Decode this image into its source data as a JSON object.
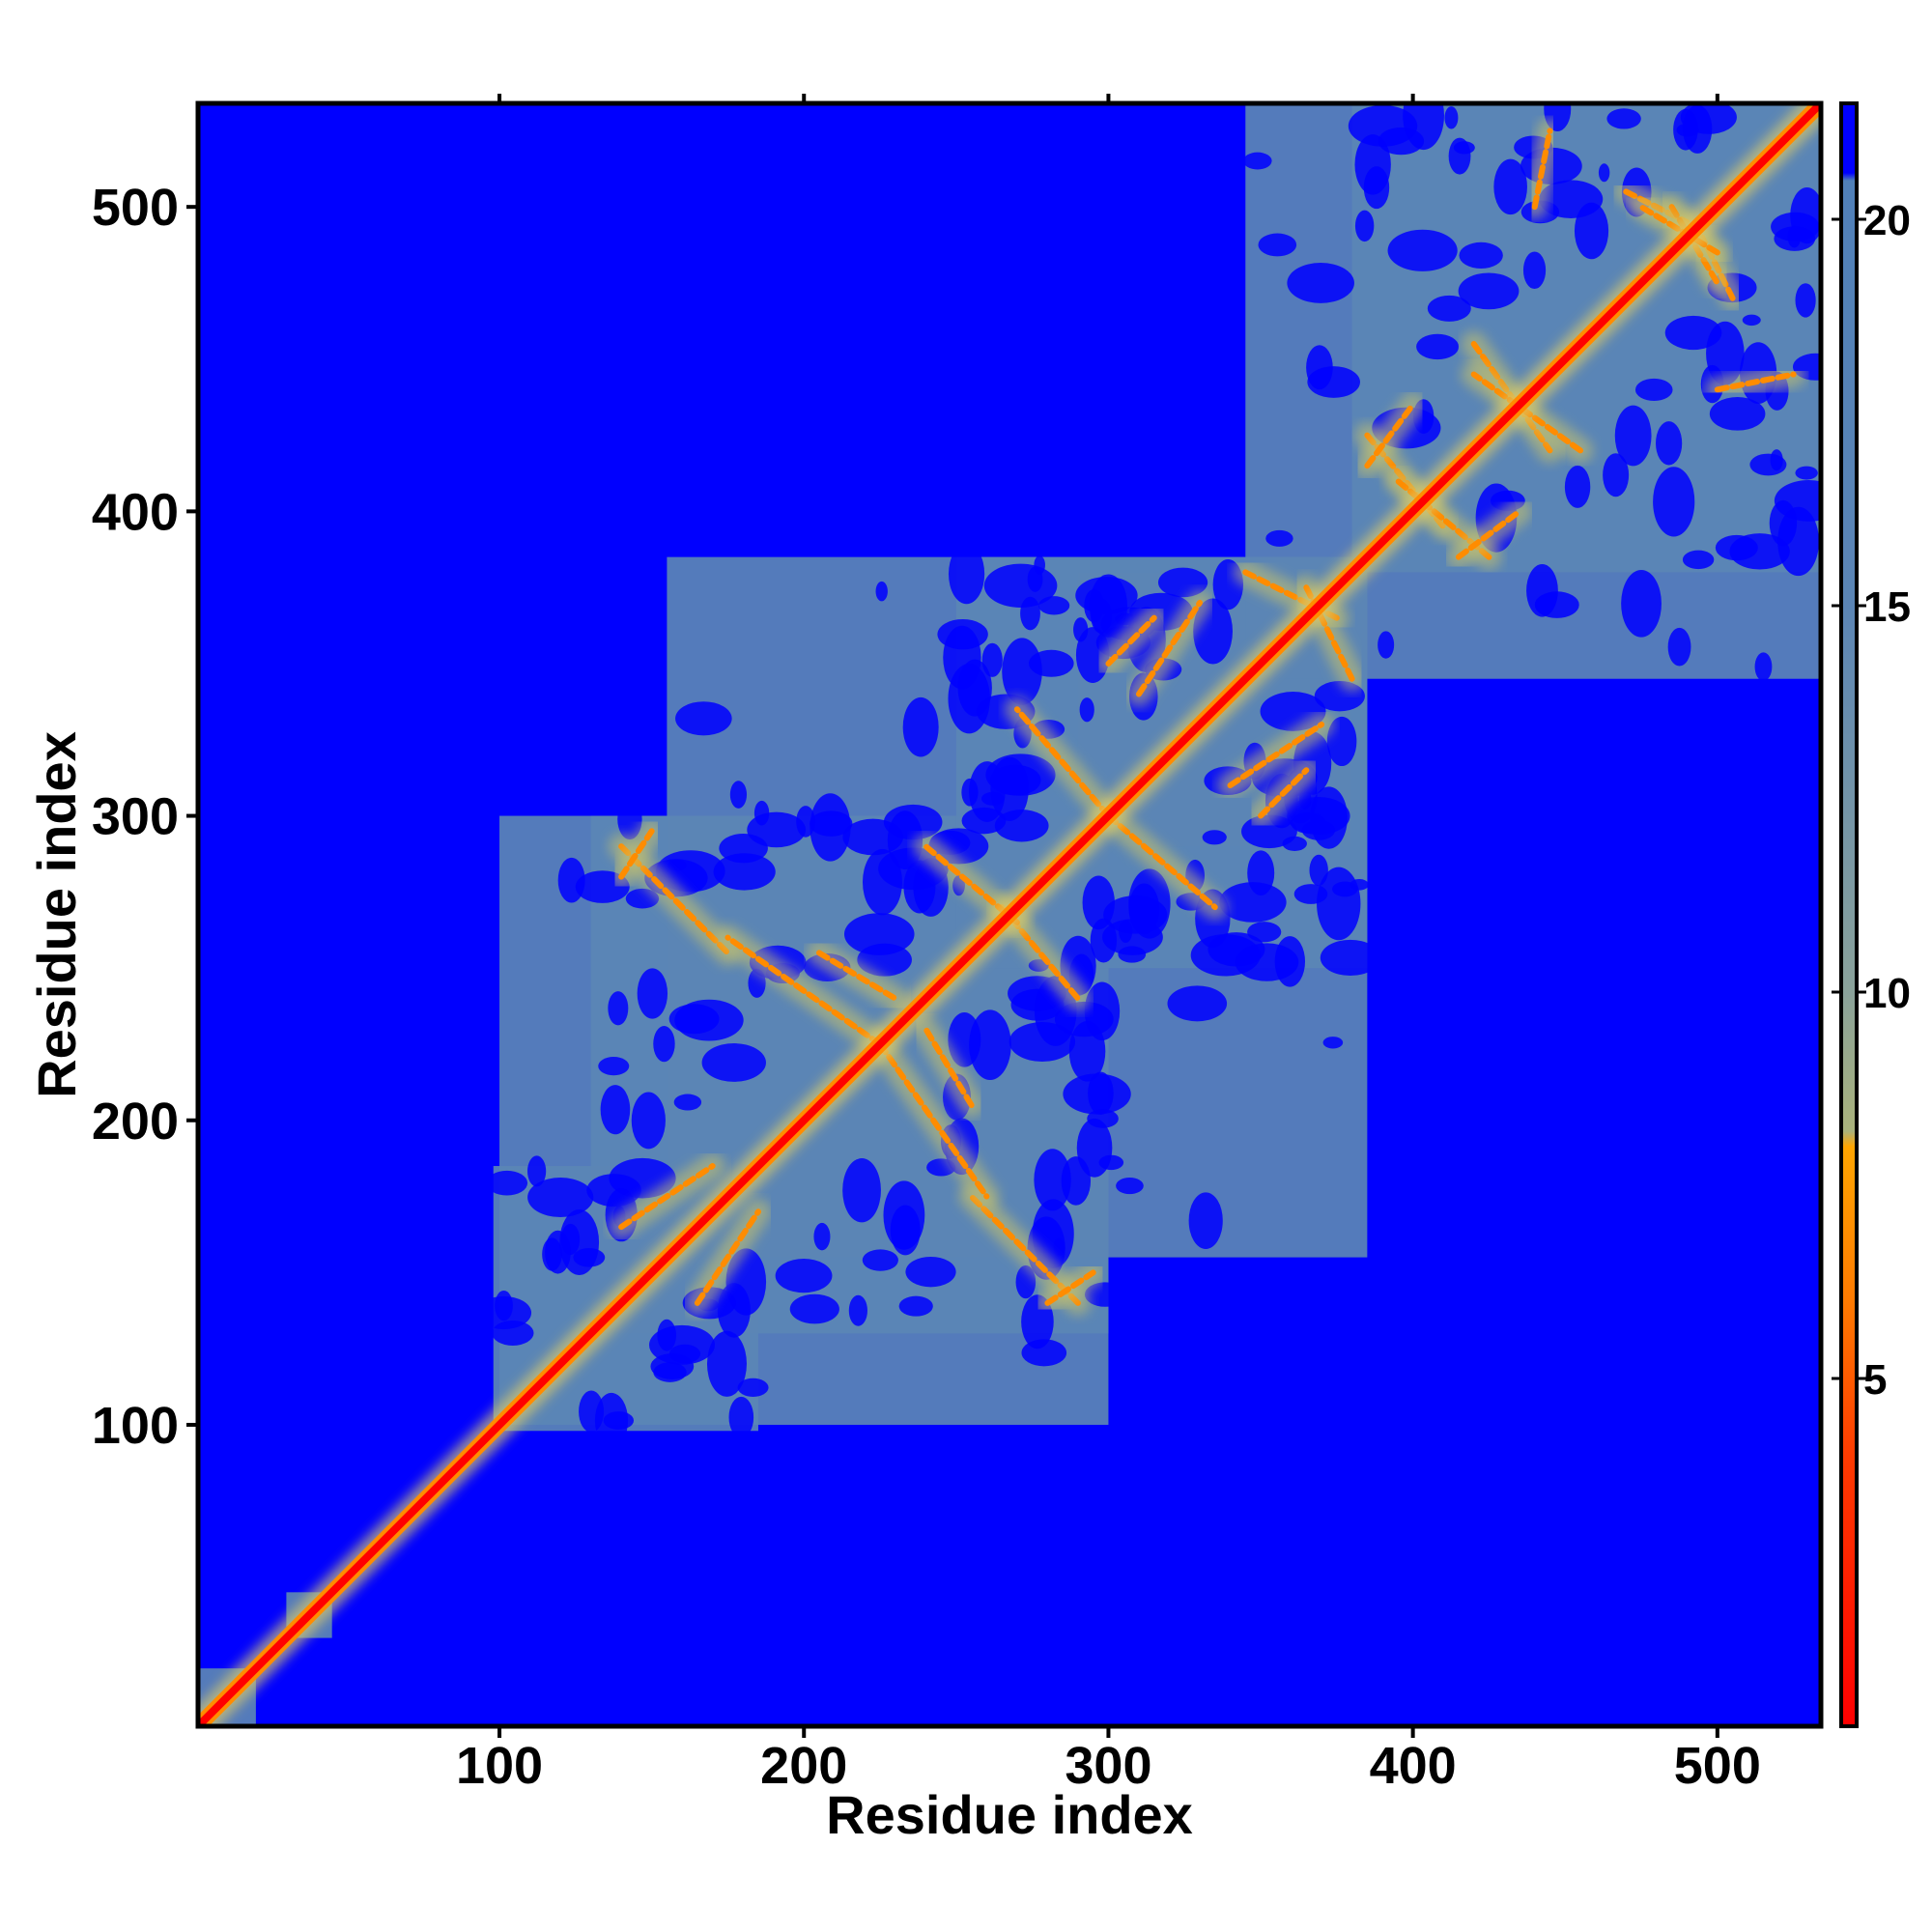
{
  "chart_data": {
    "type": "heatmap",
    "title": "",
    "xlabel": "Residue index",
    "ylabel": "Residue index",
    "xlim": [
      1,
      534
    ],
    "ylim": [
      1,
      534
    ],
    "x_ticks": [
      100,
      200,
      300,
      400,
      500
    ],
    "y_ticks": [
      100,
      200,
      300,
      400,
      500
    ],
    "x_tick_labels": [
      "100",
      "200",
      "300",
      "400",
      "500"
    ],
    "y_tick_labels": [
      "100",
      "200",
      "300",
      "400",
      "500"
    ],
    "colorbar": {
      "min": 0.5,
      "max": 21.5,
      "ticks": [
        5,
        10,
        15,
        20
      ],
      "tick_labels": [
        "5",
        "10",
        "15",
        "20"
      ],
      "stops": [
        {
          "value": 0.5,
          "color": "#ff0000"
        },
        {
          "value": 4,
          "color": "#ff3b00"
        },
        {
          "value": 6,
          "color": "#ff7a00"
        },
        {
          "value": 8,
          "color": "#ffa500"
        },
        {
          "value": 8.2,
          "color": "#a9b27b"
        },
        {
          "value": 10,
          "color": "#8aa29a"
        },
        {
          "value": 15,
          "color": "#5b85b5"
        },
        {
          "value": 20.5,
          "color": "#5080b8"
        },
        {
          "value": 20.6,
          "color": "#0000ff"
        },
        {
          "value": 21.5,
          "color": "#0000ff"
        }
      ]
    },
    "background_color": "#0000ff",
    "diagonal_color": "#ff0000",
    "domains": [
      {
        "start": 1,
        "end": 20,
        "level": 16
      },
      {
        "start": 30,
        "end": 45,
        "level": 16
      },
      {
        "start": 98,
        "end": 185,
        "level": 17
      },
      {
        "start": 100,
        "end": 300,
        "level": 16
      },
      {
        "start": 130,
        "end": 300,
        "level": 17
      },
      {
        "start": 155,
        "end": 385,
        "level": 18
      },
      {
        "start": 250,
        "end": 385,
        "level": 17
      },
      {
        "start": 290,
        "end": 380,
        "level": 16
      },
      {
        "start": 380,
        "end": 534,
        "level": 16
      },
      {
        "start": 345,
        "end": 534,
        "level": 18
      }
    ],
    "contact_arms": [
      {
        "x1": 140,
        "y1": 290,
        "x2": 175,
        "y2": 255
      },
      {
        "x1": 165,
        "y1": 140,
        "x2": 185,
        "y2": 170
      },
      {
        "x1": 205,
        "y1": 255,
        "x2": 230,
        "y2": 240
      },
      {
        "x1": 225,
        "y1": 225,
        "x2": 260,
        "y2": 175
      },
      {
        "x1": 265,
        "y1": 270,
        "x2": 290,
        "y2": 240
      },
      {
        "x1": 280,
        "y1": 140,
        "x2": 295,
        "y2": 150
      },
      {
        "x1": 300,
        "y1": 300,
        "x2": 335,
        "y2": 270
      },
      {
        "x1": 310,
        "y1": 340,
        "x2": 330,
        "y2": 370
      },
      {
        "x1": 350,
        "y1": 300,
        "x2": 365,
        "y2": 315
      },
      {
        "x1": 375,
        "y1": 365,
        "x2": 345,
        "y2": 380
      },
      {
        "x1": 385,
        "y1": 425,
        "x2": 410,
        "y2": 395
      },
      {
        "x1": 415,
        "y1": 385,
        "x2": 435,
        "y2": 400
      },
      {
        "x1": 420,
        "y1": 455,
        "x2": 445,
        "y2": 420
      },
      {
        "x1": 470,
        "y1": 505,
        "x2": 490,
        "y2": 495
      },
      {
        "x1": 485,
        "y1": 500,
        "x2": 500,
        "y2": 475
      },
      {
        "x1": 500,
        "y1": 440,
        "x2": 525,
        "y2": 445
      }
    ],
    "grid": false,
    "legend": "colorbar-right"
  }
}
